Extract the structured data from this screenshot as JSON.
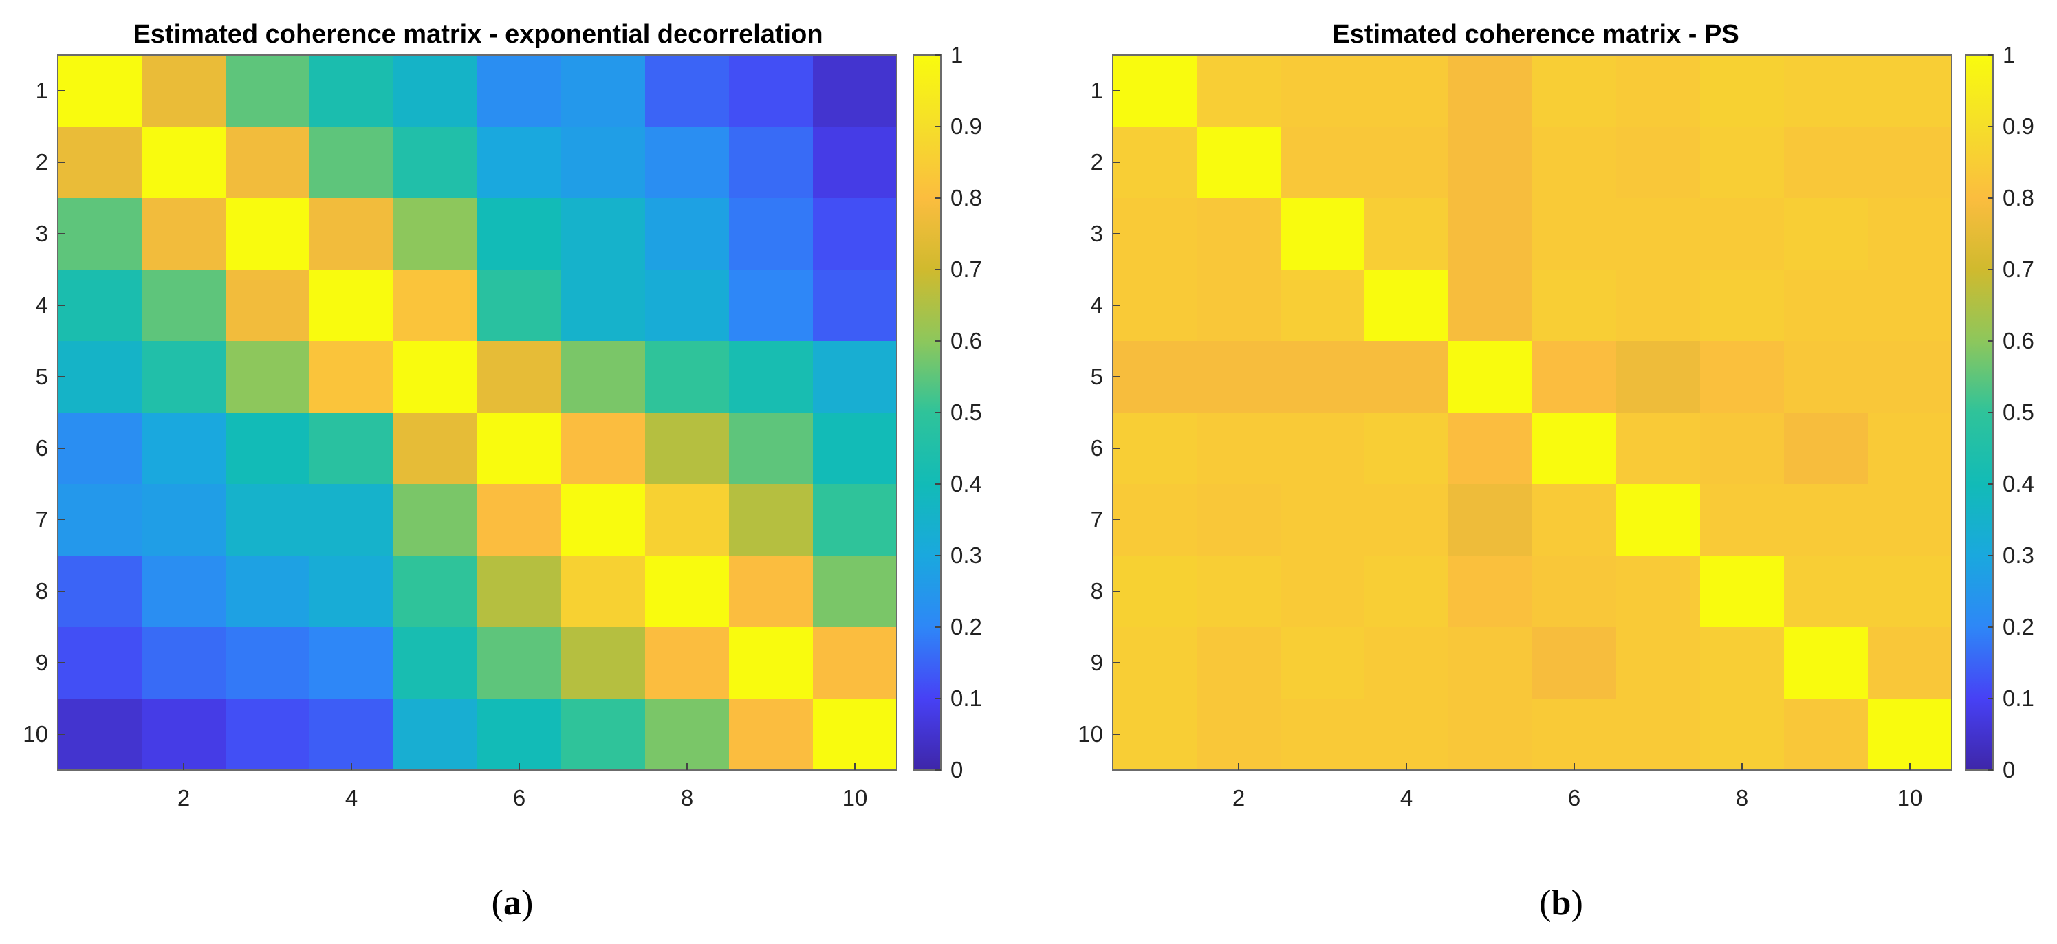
{
  "chart_data": [
    {
      "type": "heatmap",
      "title": "Estimated coherence matrix - exponential decorrelation",
      "subfigure_label": "a",
      "x_ticks": [
        2,
        4,
        6,
        8,
        10
      ],
      "y_ticks": [
        1,
        2,
        3,
        4,
        5,
        6,
        7,
        8,
        9,
        10
      ],
      "colorbar_ticks": [
        "0",
        "0.1",
        "0.2",
        "0.3",
        "0.4",
        "0.5",
        "0.6",
        "0.7",
        "0.8",
        "0.9",
        "1"
      ],
      "clim": [
        0,
        1
      ],
      "colormap": "parula",
      "matrix": [
        [
          1.0,
          0.76,
          0.55,
          0.43,
          0.36,
          0.22,
          0.25,
          0.15,
          0.12,
          0.05
        ],
        [
          0.76,
          1.0,
          0.78,
          0.55,
          0.45,
          0.3,
          0.27,
          0.22,
          0.16,
          0.08
        ],
        [
          0.55,
          0.78,
          1.0,
          0.78,
          0.6,
          0.4,
          0.35,
          0.28,
          0.18,
          0.12
        ],
        [
          0.43,
          0.55,
          0.78,
          1.0,
          0.82,
          0.48,
          0.35,
          0.32,
          0.2,
          0.14
        ],
        [
          0.36,
          0.45,
          0.6,
          0.82,
          1.0,
          0.75,
          0.58,
          0.5,
          0.42,
          0.33
        ],
        [
          0.22,
          0.3,
          0.4,
          0.48,
          0.75,
          1.0,
          0.8,
          0.66,
          0.55,
          0.4
        ],
        [
          0.25,
          0.27,
          0.35,
          0.35,
          0.58,
          0.8,
          1.0,
          0.86,
          0.66,
          0.5
        ],
        [
          0.15,
          0.22,
          0.28,
          0.32,
          0.5,
          0.66,
          0.86,
          1.0,
          0.8,
          0.58
        ],
        [
          0.12,
          0.16,
          0.18,
          0.2,
          0.42,
          0.55,
          0.66,
          0.8,
          1.0,
          0.8
        ],
        [
          0.05,
          0.08,
          0.12,
          0.14,
          0.33,
          0.4,
          0.5,
          0.58,
          0.8,
          1.0
        ]
      ]
    },
    {
      "type": "heatmap",
      "title": "Estimated coherence matrix - PS",
      "subfigure_label": "b",
      "x_ticks": [
        2,
        4,
        6,
        8,
        10
      ],
      "y_ticks": [
        1,
        2,
        3,
        4,
        5,
        6,
        7,
        8,
        9,
        10
      ],
      "colorbar_ticks": [
        "0",
        "0.1",
        "0.2",
        "0.3",
        "0.4",
        "0.5",
        "0.6",
        "0.7",
        "0.8",
        "0.9",
        "1"
      ],
      "clim": [
        0,
        1
      ],
      "colormap": "parula",
      "matrix": [
        [
          1.0,
          0.85,
          0.84,
          0.84,
          0.79,
          0.85,
          0.84,
          0.86,
          0.85,
          0.85
        ],
        [
          0.85,
          1.0,
          0.83,
          0.83,
          0.79,
          0.84,
          0.83,
          0.85,
          0.83,
          0.83
        ],
        [
          0.84,
          0.83,
          1.0,
          0.85,
          0.79,
          0.84,
          0.84,
          0.84,
          0.85,
          0.84
        ],
        [
          0.84,
          0.83,
          0.85,
          1.0,
          0.79,
          0.85,
          0.84,
          0.85,
          0.84,
          0.84
        ],
        [
          0.79,
          0.79,
          0.79,
          0.79,
          1.0,
          0.8,
          0.77,
          0.81,
          0.83,
          0.83
        ],
        [
          0.85,
          0.84,
          0.84,
          0.85,
          0.8,
          1.0,
          0.84,
          0.83,
          0.79,
          0.84
        ],
        [
          0.84,
          0.83,
          0.84,
          0.84,
          0.77,
          0.84,
          1.0,
          0.84,
          0.84,
          0.84
        ],
        [
          0.86,
          0.85,
          0.84,
          0.85,
          0.81,
          0.83,
          0.84,
          1.0,
          0.85,
          0.85
        ],
        [
          0.85,
          0.83,
          0.85,
          0.84,
          0.83,
          0.79,
          0.84,
          0.85,
          1.0,
          0.83
        ],
        [
          0.85,
          0.83,
          0.84,
          0.84,
          0.83,
          0.84,
          0.84,
          0.85,
          0.83,
          1.0
        ]
      ]
    }
  ],
  "colormap_stops": [
    "#3e26a8",
    "#4741f5",
    "#2e87f7",
    "#1aa8de",
    "#12bbb7",
    "#2fc39a",
    "#8dc75c",
    "#d0ba2e",
    "#fbbd3f",
    "#f5de2a",
    "#f9fb0e"
  ]
}
